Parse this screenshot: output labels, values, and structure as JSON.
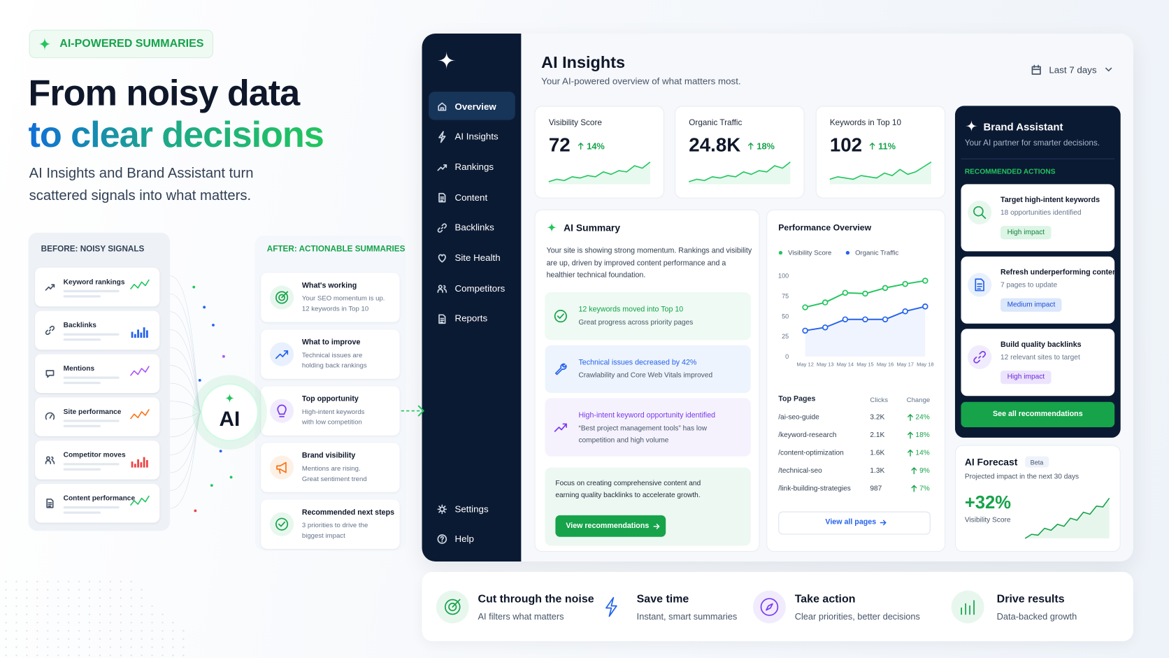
{
  "hero": {
    "badge": "AI-POWERED SUMMARIES",
    "title": [
      "From noisy data",
      "to clear decisions"
    ],
    "subtitle": [
      "AI Insights and Brand Assistant turn",
      "scattered signals into what matters."
    ]
  },
  "before": {
    "title": "BEFORE: NOISY SIGNALS",
    "items": [
      "Keyword rankings",
      "Backlinks",
      "Mentions",
      "Site performance",
      "Competitor moves",
      "Content performance"
    ]
  },
  "ai_label": "AI",
  "after": {
    "title": "AFTER: ACTIONABLE SUMMARIES",
    "items": [
      {
        "title": "What's working",
        "text": [
          "Your SEO momentum is up.",
          "12 keywords in Top 10"
        ]
      },
      {
        "title": "What to improve",
        "text": [
          "Technical issues are",
          "holding back rankings"
        ]
      },
      {
        "title": "Top opportunity",
        "text": [
          "High-intent keywords",
          "with low competition"
        ]
      },
      {
        "title": "Brand visibility",
        "text": [
          "Mentions are rising.",
          "Great sentiment trend"
        ]
      },
      {
        "title": "Recommended next steps",
        "text": [
          "3 priorities to drive the",
          "biggest impact"
        ]
      }
    ]
  },
  "sidebar": {
    "nav": [
      "Overview",
      "AI Insights",
      "Rankings",
      "Content",
      "Backlinks",
      "Site Health",
      "Competitors",
      "Reports"
    ],
    "bottom": [
      "Settings",
      "Help"
    ]
  },
  "header": {
    "title": "AI Insights",
    "subtitle": "Your AI-powered overview of what matters most.",
    "range": "Last 7 days"
  },
  "kpis": [
    {
      "label": "Visibility Score",
      "value": "72",
      "change": "14%"
    },
    {
      "label": "Organic Traffic",
      "value": "24.8K",
      "change": "18%"
    },
    {
      "label": "Keywords in Top 10",
      "value": "102",
      "change": "11%"
    }
  ],
  "summary": {
    "title": "AI Summary",
    "text": [
      "Your site is showing strong momentum. Rankings and visibility",
      "are up, driven by improved content performance and a",
      "healthier technical foundation."
    ],
    "items": [
      {
        "title": "12 keywords moved into Top 10",
        "text": [
          "Great progress across priority pages"
        ]
      },
      {
        "title": "Technical issues decreased by 42%",
        "text": [
          "Crawlability and Core Web Vitals improved"
        ]
      },
      {
        "title": "High-intent keyword opportunity identified",
        "text": [
          "“Best project management tools” has low",
          "competition and high volume"
        ]
      }
    ],
    "footer": [
      "Focus on creating comprehensive content and",
      "earning quality backlinks to accelerate growth."
    ],
    "button": "View recommendations"
  },
  "chart_data": {
    "type": "line",
    "title": "Performance Overview",
    "categories": [
      "May 12",
      "May 13",
      "May 14",
      "May 15",
      "May 16",
      "May 17",
      "May 18"
    ],
    "series": [
      {
        "name": "Visibility Score",
        "color": "#22c55e",
        "values": [
          61,
          67,
          79,
          78,
          85,
          90,
          94
        ]
      },
      {
        "name": "Organic Traffic",
        "color": "#2563eb",
        "values": [
          32,
          36,
          46,
          46,
          46,
          56,
          62
        ]
      }
    ],
    "ylim": [
      0,
      100
    ],
    "yticks": [
      0,
      25,
      50,
      75,
      100
    ],
    "grid": false
  },
  "top_pages": {
    "headers": [
      "Top Pages",
      "Clicks",
      "Change"
    ],
    "rows": [
      [
        "/ai-seo-guide",
        "3.2K",
        "24%"
      ],
      [
        "/keyword-research",
        "2.1K",
        "18%"
      ],
      [
        "/content-optimization",
        "1.6K",
        "14%"
      ],
      [
        "/technical-seo",
        "1.3K",
        "9%"
      ],
      [
        "/link-building-strategies",
        "987",
        "7%"
      ]
    ],
    "button": "View all pages"
  },
  "assistant": {
    "title": "Brand Assistant",
    "subtitle": "Your AI partner for smarter decisions.",
    "section": "RECOMMENDED ACTIONS",
    "items": [
      {
        "title": "Target high-intent keywords",
        "text": "18 opportunities identified",
        "impact": "High impact"
      },
      {
        "title": "Refresh underperforming content",
        "text": "7 pages to update",
        "impact": "Medium impact"
      },
      {
        "title": "Build quality backlinks",
        "text": "12 relevant sites to target",
        "impact": "High impact"
      }
    ],
    "button": "See all recommendations"
  },
  "forecast": {
    "title": "AI Forecast",
    "badge": "Beta",
    "subtitle": "Projected impact in the next 30 days",
    "value": "+32%",
    "label": "Visibility Score"
  },
  "benefits": [
    {
      "title": "Cut through the noise",
      "text": "AI filters what matters"
    },
    {
      "title": "Save time",
      "text": "Instant, smart summaries"
    },
    {
      "title": "Take action",
      "text": "Clear priorities, better decisions"
    },
    {
      "title": "Drive results",
      "text": "Data-backed growth"
    }
  ]
}
